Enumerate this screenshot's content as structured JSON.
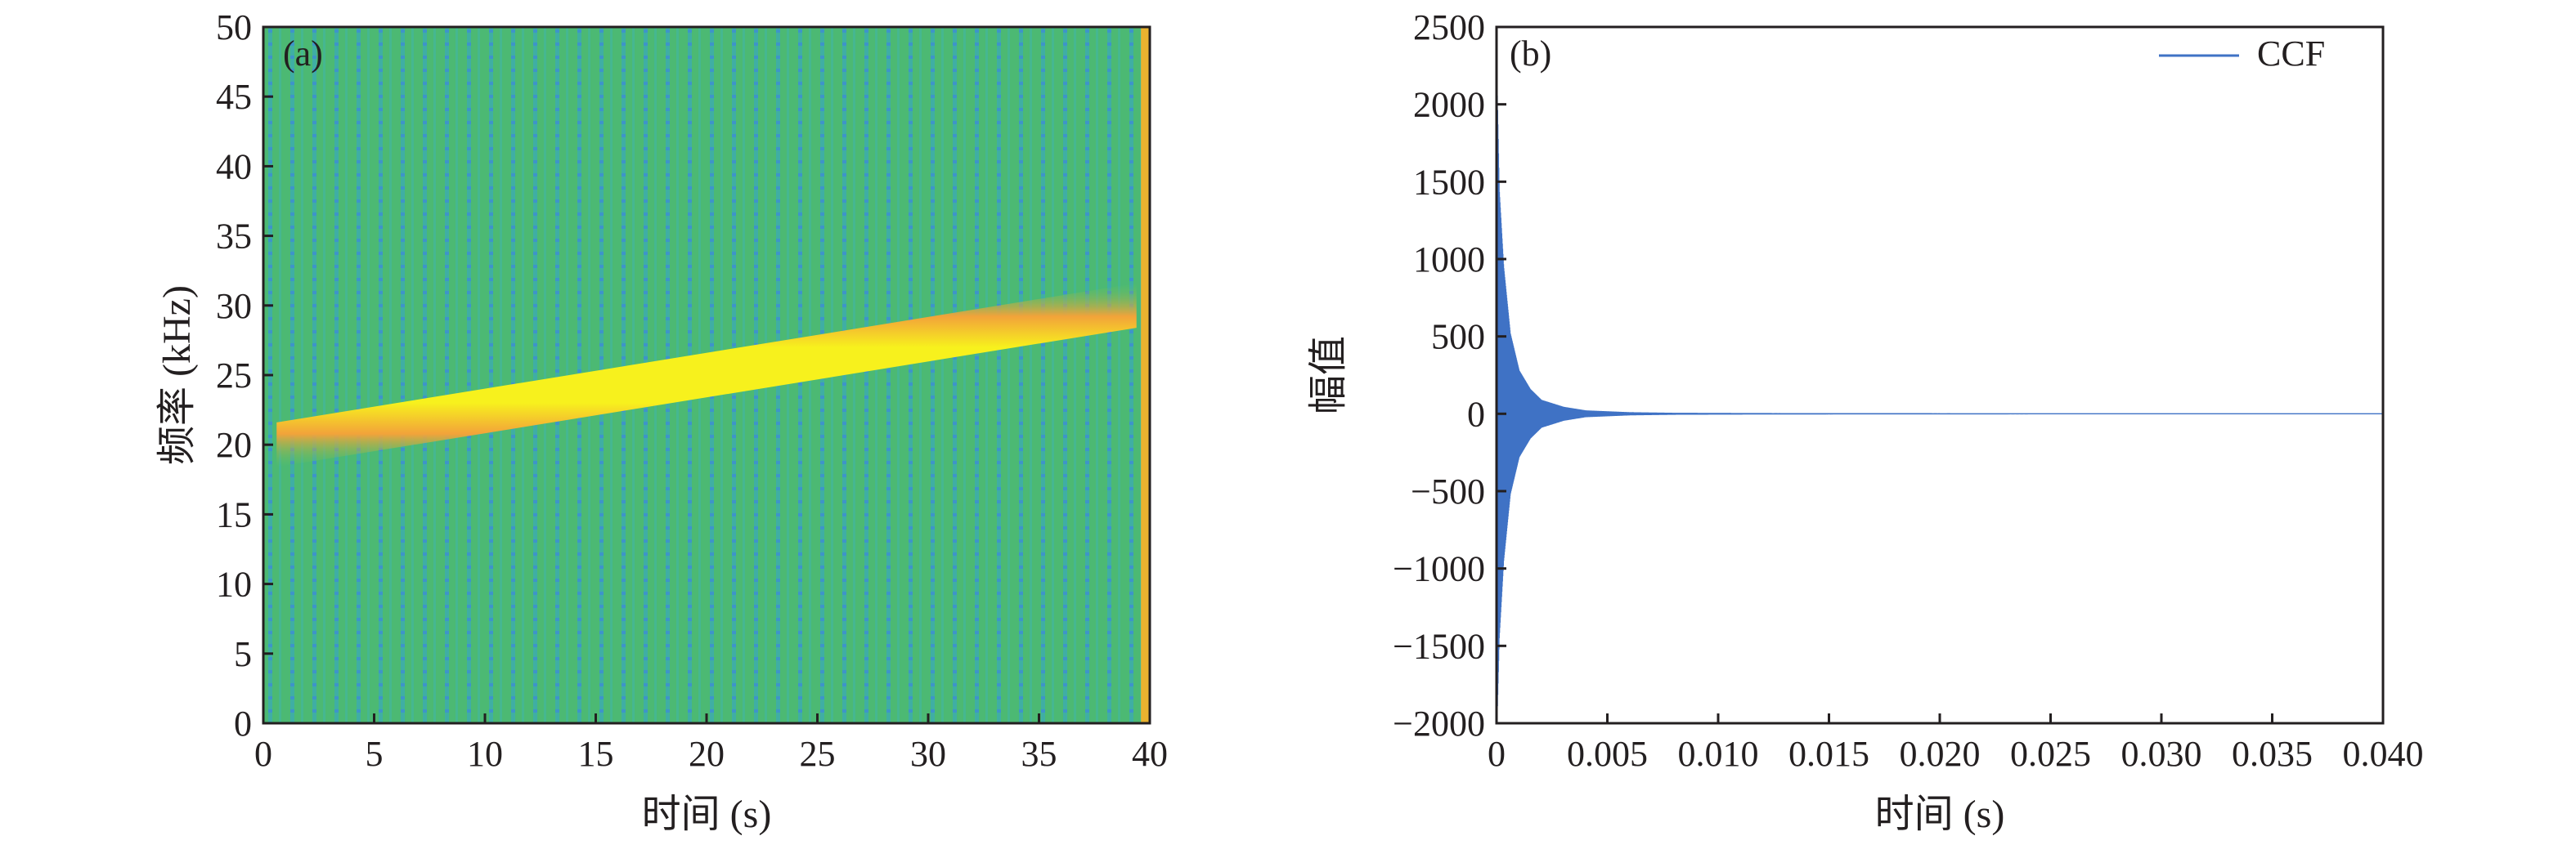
{
  "figure": {
    "background": "#ffffff"
  },
  "chart_data": [
    {
      "type": "heatmap",
      "panel_label": "(a)",
      "xlabel": "时间 (s)",
      "ylabel": "频率 (kHz)",
      "xlim": [
        0,
        40
      ],
      "ylim": [
        0,
        50
      ],
      "xticks": [
        0,
        5,
        10,
        15,
        20,
        25,
        30,
        35,
        40
      ],
      "yticks": [
        0,
        5,
        10,
        15,
        20,
        25,
        30,
        35,
        40,
        45,
        50
      ],
      "grid": false,
      "colormap": "parula",
      "colors": {
        "background": "#4cb973",
        "ridge_core": "#f7f11d",
        "ridge_edge": "#f2a33a",
        "stripes": "#2ea0e0",
        "right_edge": "#e9b22f"
      },
      "ridge": {
        "x": [
          0.6,
          39.4
        ],
        "y": [
          20.0,
          30.0
        ],
        "half_width": 1.6
      },
      "edge_artifact": {
        "x": 39.6,
        "y_range": [
          0,
          50
        ]
      }
    },
    {
      "type": "line",
      "panel_label": "(b)",
      "xlabel": "时间 (s)",
      "ylabel": "幅值",
      "xlim": [
        0,
        0.04
      ],
      "ylim": [
        -2000,
        2500
      ],
      "xticks": [
        0,
        0.005,
        0.01,
        0.015,
        0.02,
        0.025,
        0.03,
        0.035,
        0.04
      ],
      "xtick_labels": [
        "0",
        "0.005",
        "0.010",
        "0.015",
        "0.020",
        "0.025",
        "0.030",
        "0.035",
        "0.040"
      ],
      "yticks": [
        -2000,
        -1500,
        -1000,
        -500,
        0,
        500,
        1000,
        1500,
        2000,
        2500
      ],
      "yticklabels": [
        "−2000",
        "−1500",
        "−1000",
        "−500",
        "0",
        "500",
        "1000",
        "1500",
        "2000",
        "2500"
      ],
      "grid": false,
      "legend": "top-right",
      "series": [
        {
          "name": "CCF",
          "color": "#3f72c5",
          "envelope": {
            "x": [
              0,
              0.0001,
              0.0003,
              0.0006,
              0.001,
              0.0015,
              0.002,
              0.003,
              0.004,
              0.006,
              0.008,
              0.012,
              0.02,
              0.03,
              0.04
            ],
            "upper": [
              2150,
              1450,
              950,
              520,
              280,
              160,
              90,
              45,
              22,
              10,
              6,
              4,
              3,
              2,
              2
            ],
            "lower": [
              -2000,
              -1450,
              -950,
              -520,
              -280,
              -160,
              -90,
              -45,
              -22,
              -10,
              -6,
              -4,
              -3,
              -2,
              -2
            ]
          }
        }
      ]
    }
  ]
}
